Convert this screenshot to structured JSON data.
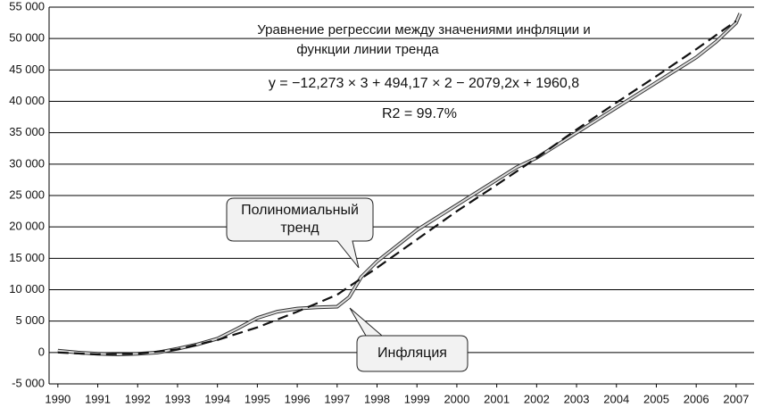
{
  "chart_data": {
    "type": "line",
    "title_lines": [
      "Уравнение регрессии между значениями инфляции и",
      "функции линии тренда"
    ],
    "equation": "y = −12,273 × 3 + 494,17 × 2 − 2079,2x + 1960,8",
    "r2": "R2 = 99.7%",
    "xlim": [
      1989.78,
      2007.45
    ],
    "xticks": [
      1990,
      1991,
      1992,
      1993,
      1994,
      1995,
      1996,
      1997,
      1998,
      1999,
      2000,
      2001,
      2002,
      2003,
      2004,
      2005,
      2006,
      2007
    ],
    "ylim": [
      -5000,
      55000
    ],
    "yticks": [
      {
        "value": -5000,
        "label": "-5 000"
      },
      0,
      {
        "value": 5000,
        "label": "5 000"
      },
      {
        "value": 10000,
        "label": "10 000"
      },
      {
        "value": 15000,
        "label": "15 000"
      },
      {
        "value": 20000,
        "label": "20 000"
      },
      {
        "value": 25000,
        "label": "25 000"
      },
      {
        "value": 30000,
        "label": "30 000"
      },
      {
        "value": 35000,
        "label": "35 000"
      },
      {
        "value": 40000,
        "label": "40 000"
      },
      {
        "value": 45000,
        "label": "45 000"
      },
      {
        "value": 50000,
        "label": "50 000"
      },
      {
        "value": 55000,
        "label": "55 000"
      }
    ],
    "grid": true,
    "series": [
      {
        "name": "Инфляция",
        "color": "#888888",
        "style": "solid",
        "x": [
          1990,
          1990.5,
          1991,
          1991.5,
          1992,
          1992.5,
          1993,
          1993.5,
          1994,
          1994.5,
          1995,
          1995.5,
          1996,
          1996.5,
          1997,
          1997.3,
          1997.6,
          1998,
          1998.5,
          1999,
          1999.5,
          2000,
          2000.5,
          2001,
          2001.5,
          2002,
          2002.5,
          2003,
          2003.5,
          2004,
          2004.5,
          2005,
          2005.5,
          2006,
          2006.5,
          2007,
          2007.1
        ],
        "values": [
          300,
          0,
          -200,
          -300,
          -200,
          0,
          600,
          1300,
          2200,
          3800,
          5500,
          6500,
          7000,
          7200,
          7300,
          8800,
          12000,
          14500,
          17000,
          19500,
          21500,
          23500,
          25500,
          27500,
          29500,
          31000,
          33000,
          35000,
          37000,
          39000,
          41000,
          43000,
          45000,
          47000,
          49500,
          52500,
          54000
        ]
      },
      {
        "name": "Полиномиальный тренд",
        "color": "#111111",
        "style": "dashed",
        "x": [
          1990,
          1991,
          1992,
          1993,
          1994,
          1995,
          1996,
          1997,
          1998,
          1999,
          2000,
          2001,
          2002,
          2003,
          2004,
          2005,
          2006,
          2007
        ],
        "values": [
          0,
          -300,
          -200,
          500,
          2000,
          4000,
          6500,
          9200,
          13500,
          18000,
          22500,
          26700,
          31000,
          35500,
          39800,
          44000,
          48300,
          52800
        ]
      }
    ]
  }
}
